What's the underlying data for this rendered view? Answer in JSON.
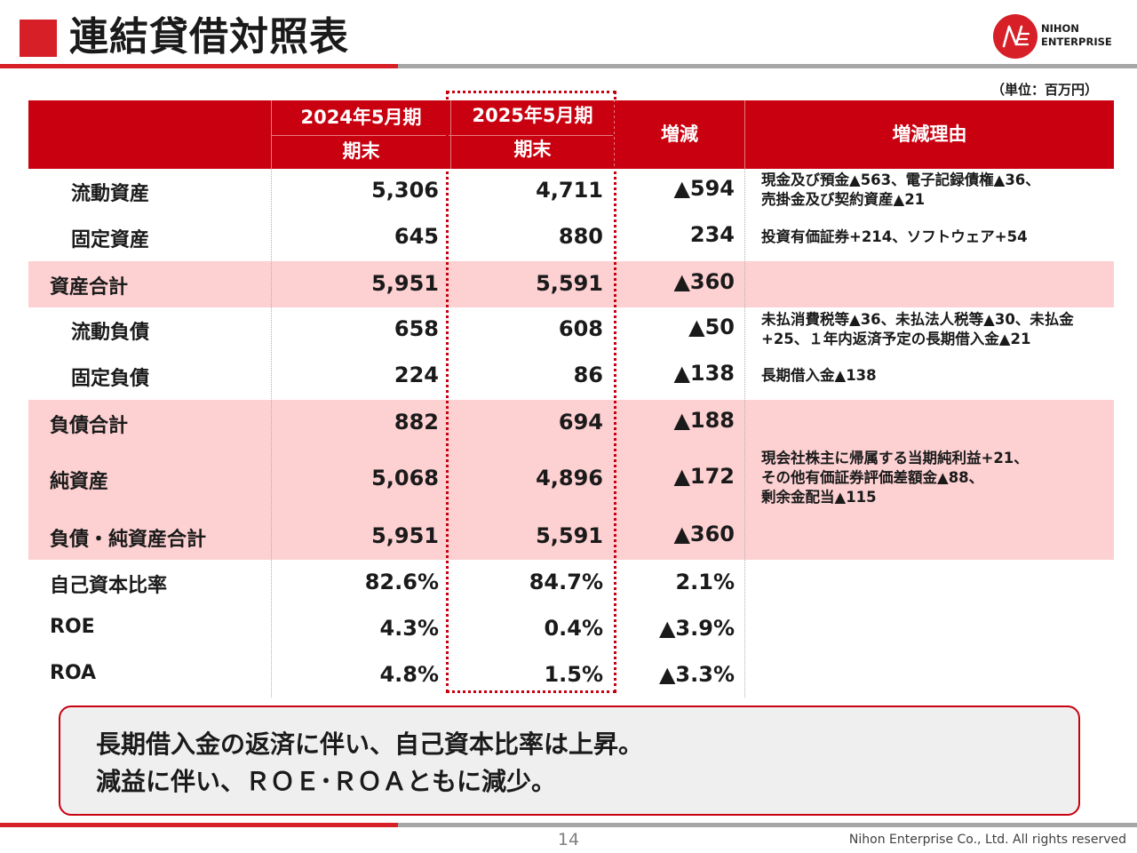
{
  "title": "連結貸借対照表",
  "logo": {
    "line1": "NIHON",
    "line2": "ENTERPRISE",
    "brand_color": "#d61f26"
  },
  "unit": "（単位：百万円）",
  "headers": {
    "prev_year": "2024年5月期",
    "prev_sub": "期末",
    "curr_year": "2025年5月期",
    "curr_sub": "期末",
    "change": "増減",
    "reason": "増減理由"
  },
  "rows": [
    {
      "label": "流動資産",
      "prev": "5,306",
      "curr": "4,711",
      "change": "▲594",
      "reason": [
        "現金及び預金▲563、電子記録債権▲36、",
        "売掛金及び契約資産▲21"
      ]
    },
    {
      "label": "固定資産",
      "prev": "645",
      "curr": "880",
      "change": "234",
      "reason": [
        "投資有価証券+214、ソフトウェア+54"
      ]
    },
    {
      "label": "資産合計",
      "prev": "5,951",
      "curr": "5,591",
      "change": "▲360",
      "reason": []
    },
    {
      "label": "流動負債",
      "prev": "658",
      "curr": "608",
      "change": "▲50",
      "reason": [
        "未払消費税等▲36、未払法人税等▲30、未払金",
        "+25、１年内返済予定の長期借入金▲21"
      ]
    },
    {
      "label": "固定負債",
      "prev": "224",
      "curr": "86",
      "change": "▲138",
      "reason": [
        "長期借入金▲138"
      ]
    },
    {
      "label": "負債合計",
      "prev": "882",
      "curr": "694",
      "change": "▲188",
      "reason": []
    },
    {
      "label": "純資産",
      "prev": "5,068",
      "curr": "4,896",
      "change": "▲172",
      "reason": [
        "現会社株主に帰属する当期純利益+21、",
        "その他有価証券評価差額金▲88、",
        "剰余金配当▲115"
      ]
    },
    {
      "label": "負債・純資産合計",
      "prev": "5,951",
      "curr": "5,591",
      "change": "▲360",
      "reason": []
    },
    {
      "label": "自己資本比率",
      "prev": "82.6%",
      "curr": "84.7%",
      "change": "2.1%",
      "reason": []
    },
    {
      "label": "ROE",
      "prev": "4.3%",
      "curr": "0.4%",
      "change": "▲3.9%",
      "reason": []
    },
    {
      "label": "ROA",
      "prev": "4.8%",
      "curr": "1.5%",
      "change": "▲3.3%",
      "reason": []
    }
  ],
  "callout": {
    "line1": "長期借入金の返済に伴い、自己資本比率は上昇。",
    "line2": "減益に伴い、ＲＯＥ･ＲＯＡともに減少。"
  },
  "footer": {
    "page": "14",
    "copyright": "Nihon Enterprise Co., Ltd. All rights reserved"
  },
  "colors": {
    "accent": "#c8000f",
    "row_highlight": "#fdd0d2",
    "rule_gray": "#a6a6a6"
  }
}
